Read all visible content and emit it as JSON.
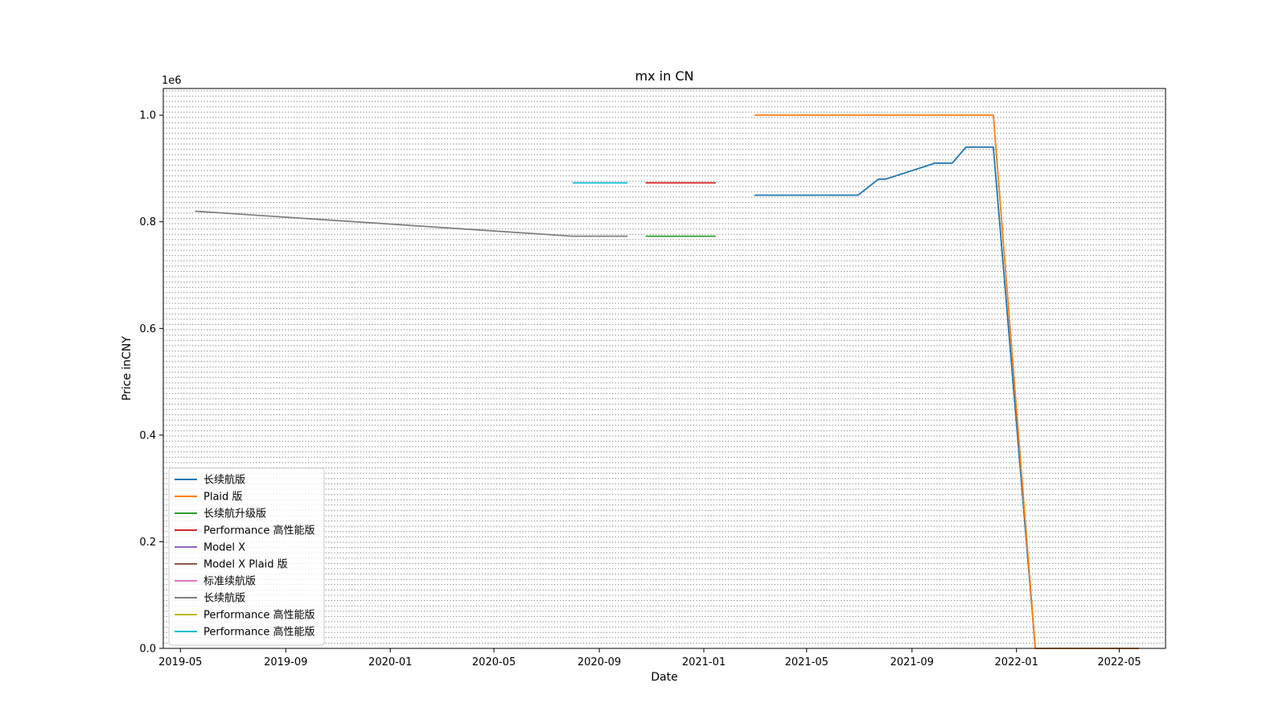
{
  "chart_data": {
    "type": "line",
    "title": "mx in CN",
    "xlabel": "Date",
    "ylabel": "Price inCNY",
    "y_offset_label": "1e6",
    "ylim": [
      0,
      1050000
    ],
    "xlim": [
      "2019-04-11",
      "2022-06-24"
    ],
    "x_ticks": [
      "2019-05",
      "2019-09",
      "2020-01",
      "2020-05",
      "2020-09",
      "2021-01",
      "2021-05",
      "2021-09",
      "2022-01",
      "2022-05"
    ],
    "y_ticks": [
      {
        "value": 0,
        "label": "0.0"
      },
      {
        "value": 200000,
        "label": "0.2"
      },
      {
        "value": 400000,
        "label": "0.4"
      },
      {
        "value": 600000,
        "label": "0.6"
      },
      {
        "value": 800000,
        "label": "0.8"
      },
      {
        "value": 1000000,
        "label": "1.0"
      }
    ],
    "grid": "dotted",
    "legend_position": "lower-left",
    "series": [
      {
        "name": "长续航版",
        "color": "#1f77b4",
        "points": [
          [
            "2021-03-01",
            849990
          ],
          [
            "2021-06-30",
            849990
          ],
          [
            "2021-07-24",
            879990
          ],
          [
            "2021-08-01",
            879990
          ],
          [
            "2021-09-28",
            909990
          ],
          [
            "2021-10-18",
            909990
          ],
          [
            "2021-11-03",
            939990
          ],
          [
            "2021-12-05",
            939990
          ],
          [
            "2022-01-23",
            0
          ],
          [
            "2022-05-24",
            0
          ]
        ]
      },
      {
        "name": "Plaid 版",
        "color": "#ff7f0e",
        "points": [
          [
            "2021-03-01",
            999990
          ],
          [
            "2021-12-05",
            999990
          ],
          [
            "2022-01-23",
            0
          ],
          [
            "2022-05-24",
            0
          ]
        ]
      },
      {
        "name": "长续航升级版",
        "color": "#2ca02c",
        "points": [
          [
            "2020-10-25",
            772990
          ],
          [
            "2021-01-15",
            772990
          ]
        ]
      },
      {
        "name": "Performance 高性能版",
        "color": "#d62728",
        "points": [
          [
            "2020-10-25",
            872990
          ],
          [
            "2021-01-15",
            872990
          ]
        ]
      },
      {
        "name": "Model X",
        "color": "#9467bd",
        "points": []
      },
      {
        "name": "Model X Plaid 版",
        "color": "#8c564b",
        "points": []
      },
      {
        "name": "标准续航版",
        "color": "#e377c2",
        "points": []
      },
      {
        "name": "长续航版",
        "color": "#7f7f7f",
        "points": [
          [
            "2019-05-18",
            819990
          ],
          [
            "2020-08-01",
            772990
          ],
          [
            "2020-10-04",
            772990
          ]
        ]
      },
      {
        "name": "Performance 高性能版",
        "color": "#bcbd22",
        "points": []
      },
      {
        "name": "Performance 高性能版",
        "color": "#17becf",
        "points": [
          [
            "2020-08-01",
            872990
          ],
          [
            "2020-10-04",
            872990
          ]
        ]
      }
    ]
  }
}
